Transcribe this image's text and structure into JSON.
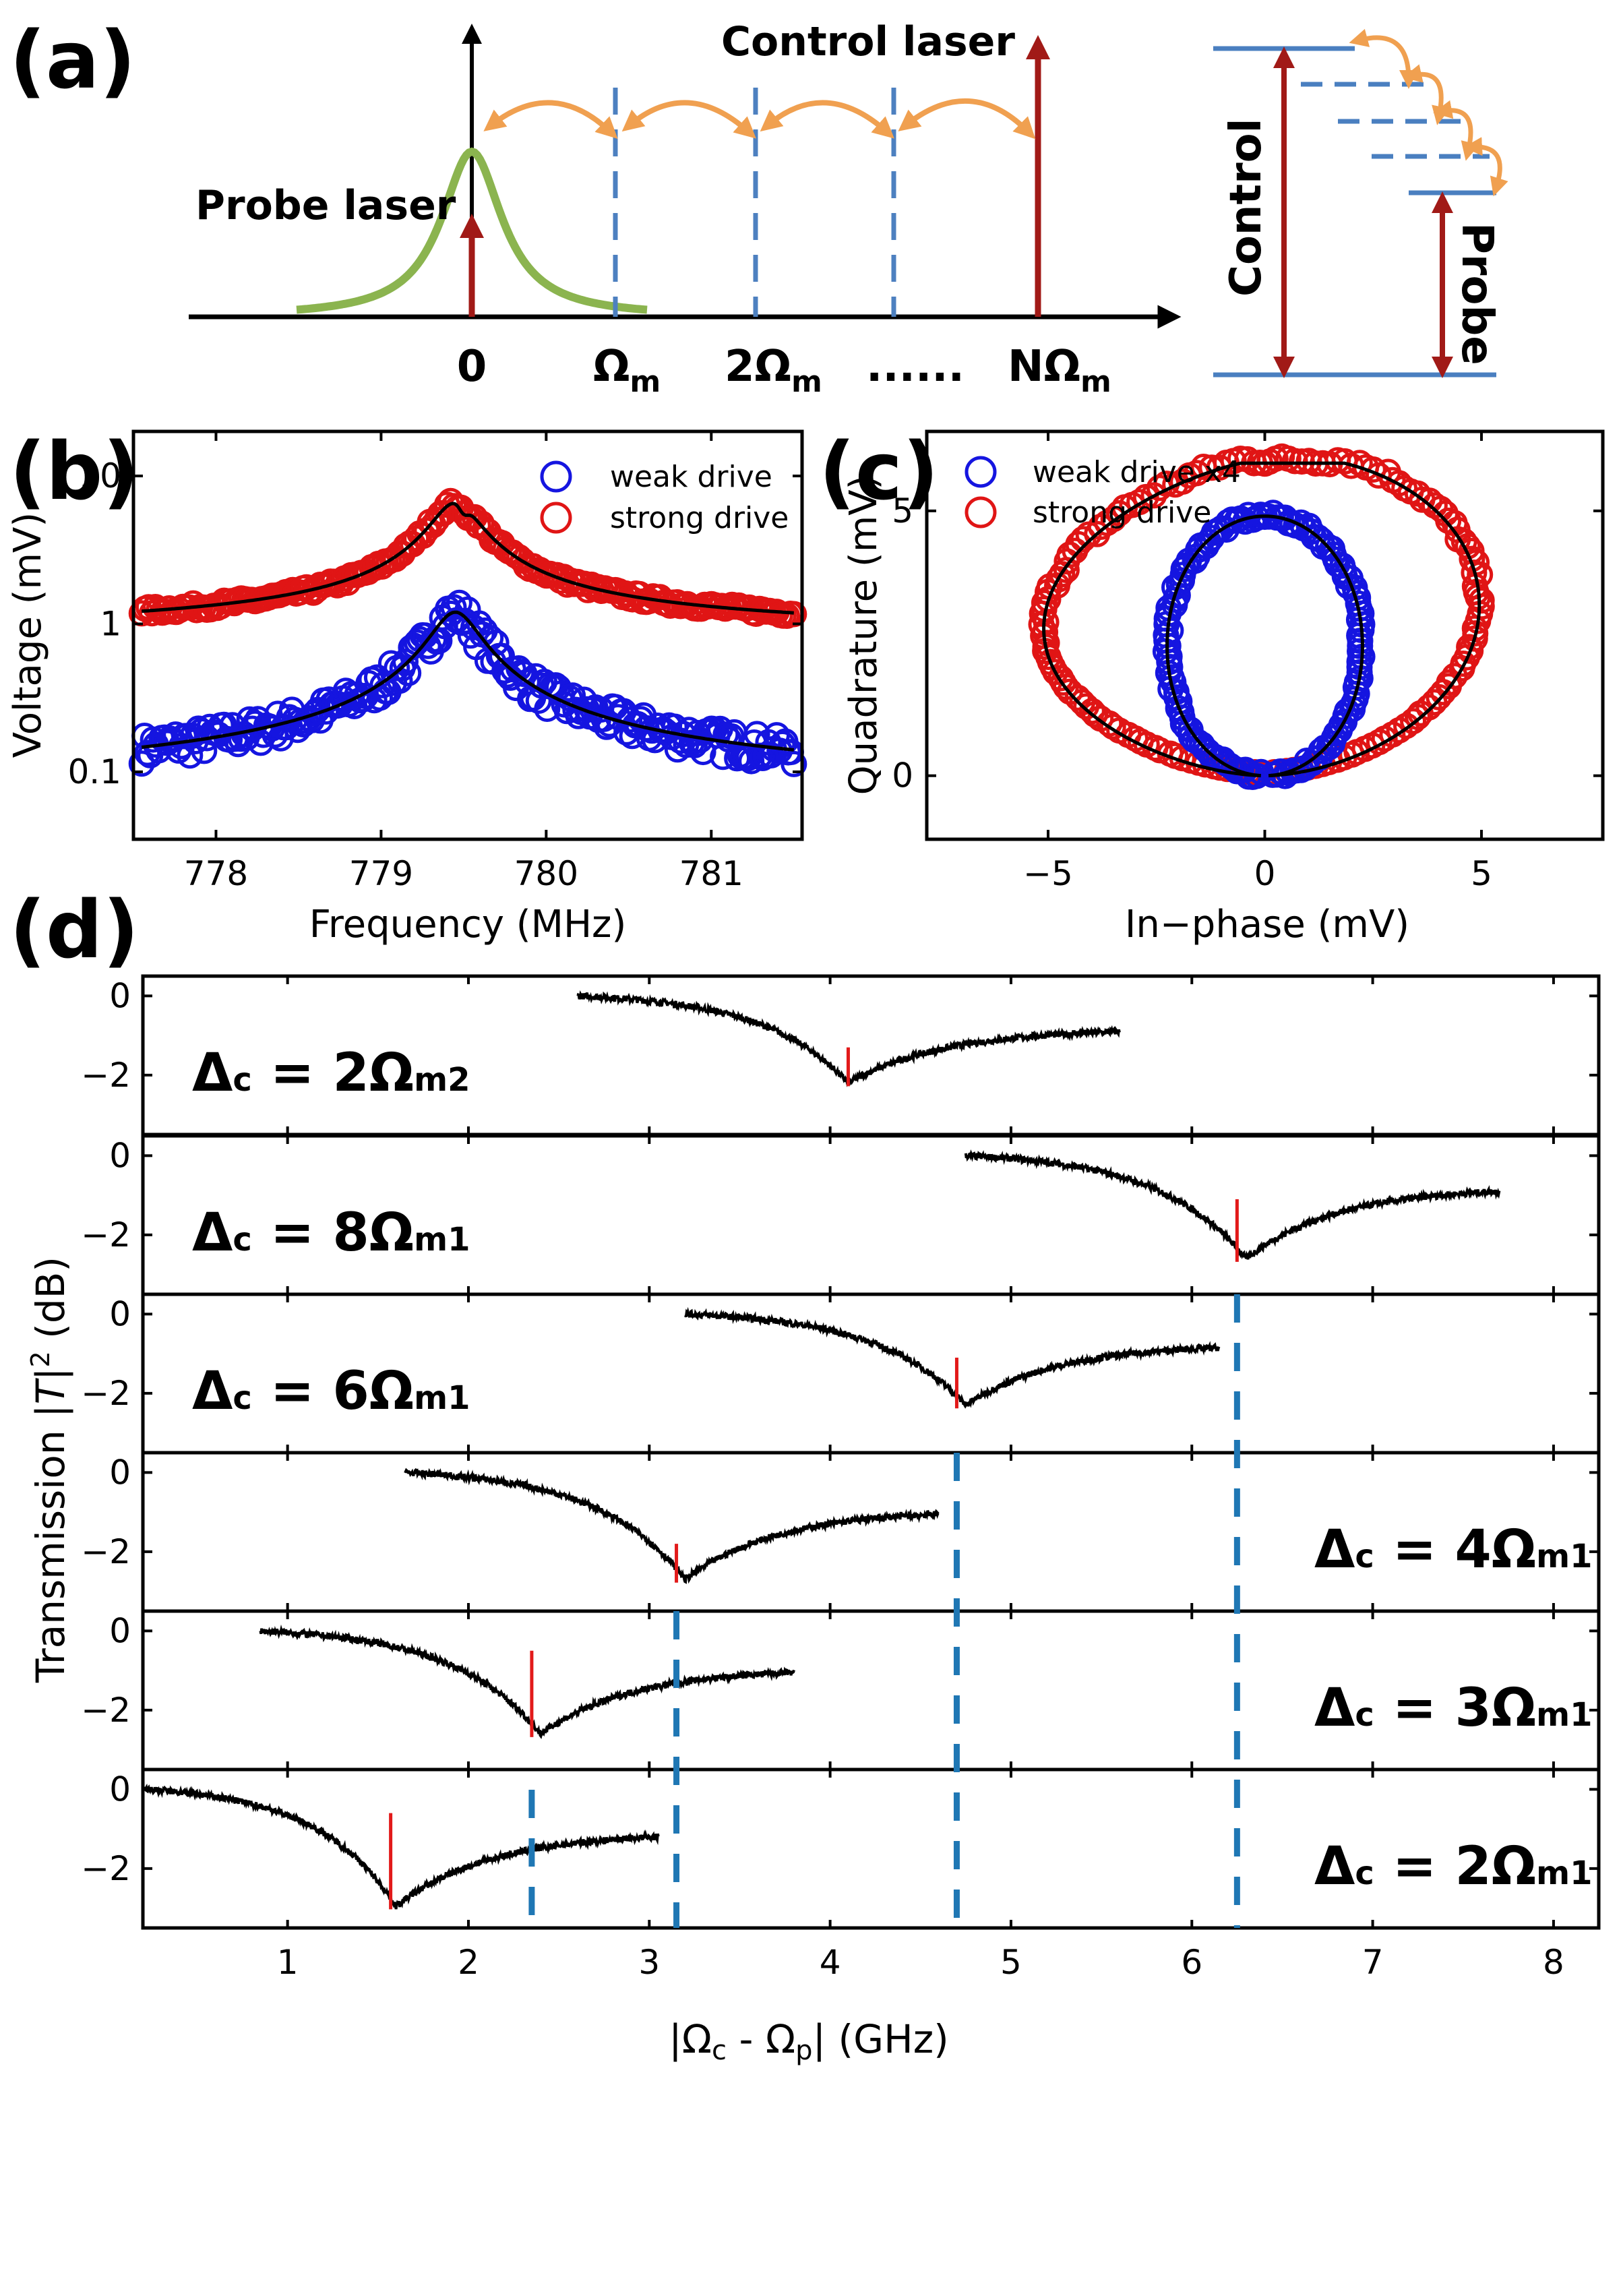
{
  "figure": {
    "panel_a": {
      "label": "(a)",
      "probe_label": "Probe laser",
      "control_label": "Control laser",
      "axis_ticks": [
        "0",
        "Ω",
        "2Ω",
        "......",
        "NΩ"
      ],
      "tick_subscripts": [
        "",
        "m",
        "m",
        "",
        "m"
      ],
      "level_control_label": "Control",
      "level_probe_label": "Probe",
      "colors": {
        "probe_curve": "#8bb44f",
        "laser_arrow": "#a11a17",
        "sideband": "#4d80c0",
        "coupling": "#f0a050",
        "levels": "#4a7fc0"
      }
    },
    "panel_b": {
      "label": "(b)",
      "chart_data": {
        "type": "scatter",
        "xlabel": "Frequency (MHz)",
        "ylabel": "Voltage (mV)",
        "xlim": [
          777.5,
          781.55
        ],
        "ylim": [
          0.035,
          20
        ],
        "yscale": "log",
        "xticks": [
          "778",
          "779",
          "780",
          "781"
        ],
        "yticks": [
          "0.1",
          "1",
          "10"
        ],
        "legend_position": "top-right",
        "series": [
          {
            "name": "weak drive",
            "color": "#1515e0",
            "center": 779.45,
            "peak": 1.2,
            "baseline_left": 0.065,
            "baseline_right": 0.065
          },
          {
            "name": "strong drive",
            "color": "#e01515",
            "center": 779.45,
            "peak": 6.6,
            "dip": 5.9,
            "baseline_left": 0.8,
            "baseline_right": 0.78
          }
        ]
      }
    },
    "panel_c": {
      "label": "(c)",
      "chart_data": {
        "type": "scatter",
        "xlabel": "In−phase (mV)",
        "ylabel": "Quadrature (mV)",
        "xlim": [
          -7.8,
          7.8
        ],
        "ylim": [
          -1.2,
          6.5
        ],
        "xticks": [
          "−5",
          "0",
          "5"
        ],
        "yticks": [
          "0",
          "5"
        ],
        "legend_position": "top-left",
        "series": [
          {
            "name": "weak drive x4",
            "color": "#1515e0",
            "shape": "circle",
            "center": [
              0,
              2.45
            ],
            "radius": 2.45
          },
          {
            "name": "strong drive",
            "color": "#e01515",
            "shape": "loop",
            "left_extent": -5.2,
            "right_extent": 5.0,
            "top": 5.9,
            "bottom": 0
          }
        ]
      }
    },
    "panel_d": {
      "label": "(d)",
      "chart_data": {
        "type": "line",
        "xlabel_parts": [
          "|Ω",
          "c",
          " - Ω",
          "p",
          "| (GHz)"
        ],
        "ylabel_parts": [
          "Transmission |",
          "T",
          "|",
          "2",
          " (dB)"
        ],
        "xlim": [
          0.2,
          8.25
        ],
        "ylim": [
          -3.5,
          0.5
        ],
        "xticks": [
          "1",
          "2",
          "3",
          "4",
          "5",
          "6",
          "7",
          "8"
        ],
        "yticks": [
          "0",
          "−2"
        ],
        "series": [
          {
            "name": "Δc = 2Ωm2",
            "label_main": "Δ",
            "label_sub": "c",
            "label_mid": " = 2Ω",
            "label_sub2": "m2",
            "label_side": "left",
            "x_start": 2.6,
            "x_end": 5.6,
            "min_x": 4.1,
            "min_y": -2.2,
            "end_y": -0.9,
            "marker_x": 4.1,
            "marker_top": -1.3
          },
          {
            "name": "Δc = 8Ωm1",
            "label_main": "Δ",
            "label_sub": "c",
            "label_mid": " = 8Ω",
            "label_sub2": "m1",
            "label_side": "left",
            "x_start": 4.75,
            "x_end": 7.7,
            "min_x": 6.3,
            "min_y": -2.6,
            "end_y": -0.9,
            "marker_x": 6.25,
            "marker_top": -1.1
          },
          {
            "name": "Δc = 6Ωm1",
            "label_main": "Δ",
            "label_sub": "c",
            "label_mid": " = 6Ω",
            "label_sub2": "m1",
            "label_side": "left",
            "x_start": 3.2,
            "x_end": 6.15,
            "min_x": 4.75,
            "min_y": -2.3,
            "end_y": -0.85,
            "marker_x": 4.7,
            "marker_top": -1.1
          },
          {
            "name": "Δc = 4Ωm1",
            "label_main": "Δ",
            "label_sub": "c",
            "label_mid": " = 4Ω",
            "label_sub2": "m1",
            "label_side": "right",
            "x_start": 1.65,
            "x_end": 4.6,
            "min_x": 3.2,
            "min_y": -2.7,
            "end_y": -1.05,
            "marker_x": 3.15,
            "marker_top": -1.8
          },
          {
            "name": "Δc = 3Ωm1",
            "label_main": "Δ",
            "label_sub": "c",
            "label_mid": " = 3Ω",
            "label_sub2": "m1",
            "label_side": "right",
            "x_start": 0.85,
            "x_end": 3.8,
            "min_x": 2.4,
            "min_y": -2.6,
            "end_y": -1.05,
            "marker_x": 2.35,
            "marker_top": -0.5
          },
          {
            "name": "Δc = 2Ωm1",
            "label_main": "Δ",
            "label_sub": "c",
            "label_mid": " = 2Ω",
            "label_sub2": "m1",
            "label_side": "right",
            "x_start": 0.2,
            "x_end": 3.05,
            "min_x": 1.6,
            "min_y": -2.95,
            "end_y": -1.2,
            "marker_x": 1.57,
            "marker_top": -0.6
          }
        ],
        "reference_lines_x": [
          2.35,
          3.15,
          4.7,
          6.25
        ],
        "reference_line_color": "#1f77b4",
        "marker_color": "#e21a1a"
      }
    }
  }
}
